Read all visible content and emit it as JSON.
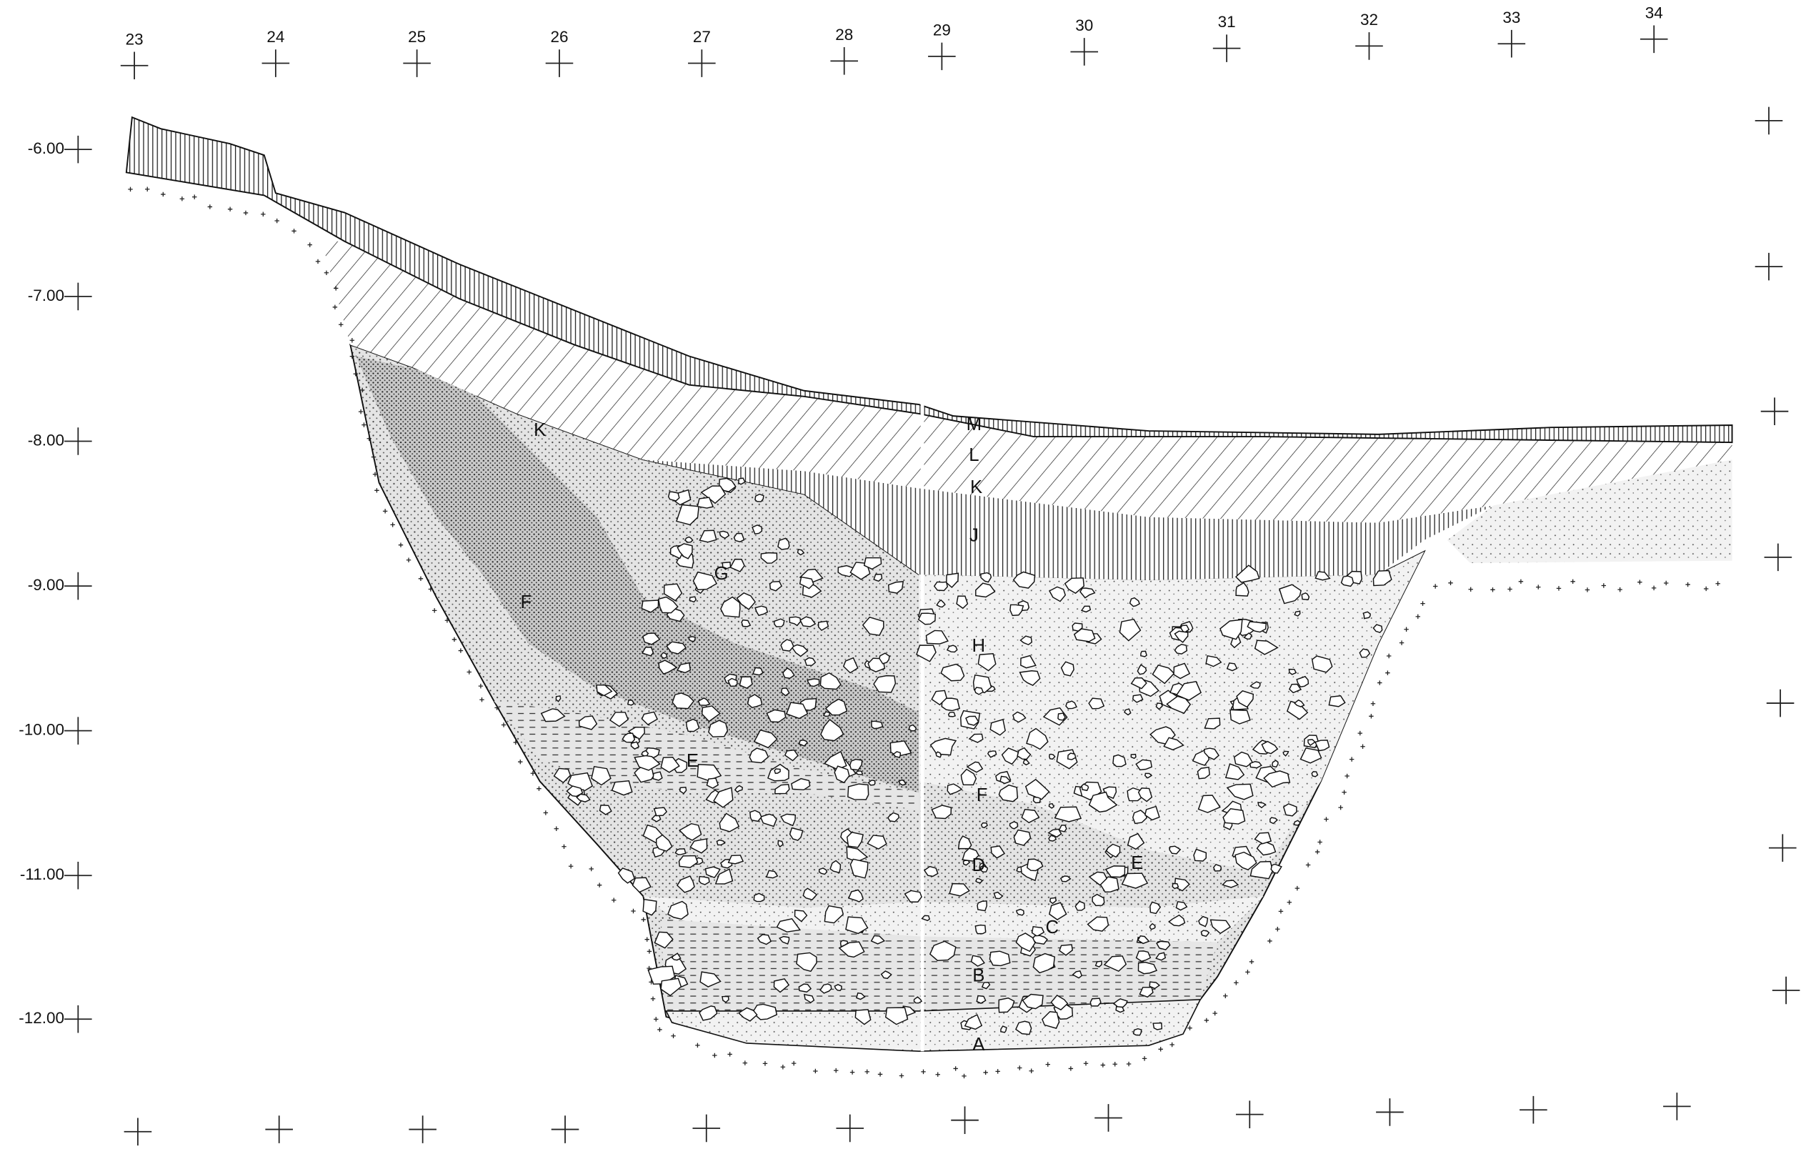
{
  "grid": {
    "x_labels": [
      "23",
      "24",
      "25",
      "26",
      "27",
      "28",
      "29",
      "30",
      "31",
      "32",
      "33",
      "34"
    ],
    "elevation_labels": [
      "-6.00",
      "-7.00",
      "-8.00",
      "-9.00",
      "-10.00",
      "-11.00",
      "-12.00"
    ]
  },
  "layers": {
    "labels": [
      "M",
      "L",
      "K",
      "J",
      "H",
      "G",
      "F",
      "E",
      "F",
      "D",
      "E",
      "C",
      "B",
      "A",
      "K"
    ]
  }
}
